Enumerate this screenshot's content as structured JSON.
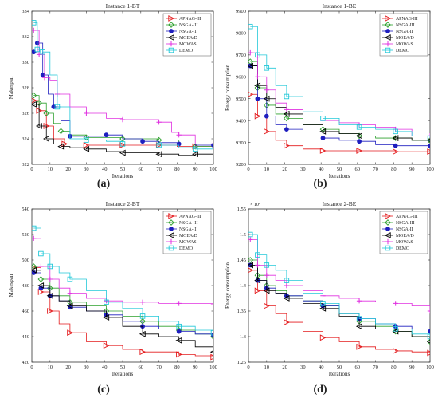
{
  "colors": {
    "APNAG-III": "#e41a1c",
    "NSGA-III": "#2ca02c",
    "NSGA-II": "#1f1fbf",
    "MOEA/D": "#000000",
    "MOWAS": "#e030e0",
    "DEMO": "#22c8d8"
  },
  "chart_data": [
    {
      "type": "line",
      "panel_label": "(a)",
      "title": "Instance 1-BT",
      "xlabel": "Iterations",
      "ylabel": "Makespan",
      "xlim": [
        0,
        100
      ],
      "ylim": [
        322,
        334
      ],
      "xticks": [
        0,
        10,
        20,
        30,
        40,
        50,
        60,
        70,
        80,
        90,
        100
      ],
      "yticks": [
        322,
        324,
        326,
        328,
        330,
        332,
        334
      ],
      "exponent_label": "",
      "legend_position": "top-right",
      "series": [
        {
          "name": "APNAG-III",
          "marker": "triangle-right",
          "x": [
            1,
            4,
            8,
            12,
            18,
            21,
            30,
            40,
            50,
            60,
            70,
            80,
            90,
            100
          ],
          "y": [
            327,
            326.2,
            325,
            324,
            323.6,
            323.6,
            323.5,
            323.5,
            323.5,
            323.5,
            323.5,
            323.4,
            323.4,
            323.4
          ]
        },
        {
          "name": "NSGA-III",
          "marker": "diamond",
          "x": [
            1,
            4,
            8,
            12,
            16,
            21,
            30,
            41,
            50,
            61,
            70,
            81,
            90,
            100
          ],
          "y": [
            327.4,
            326.8,
            326,
            325.2,
            324.6,
            324.3,
            324.1,
            324.1,
            324,
            324,
            323.9,
            323.6,
            323.4,
            323.4
          ]
        },
        {
          "name": "NSGA-II",
          "marker": "filled-circle",
          "x": [
            1,
            3,
            6,
            9,
            12,
            16,
            21,
            30,
            41,
            50,
            61,
            70,
            81,
            90,
            100
          ],
          "y": [
            330.8,
            331.5,
            329,
            327.5,
            326.5,
            325.4,
            324.2,
            324.2,
            324.3,
            324,
            323.8,
            323.7,
            323.6,
            323.5,
            323.5
          ]
        },
        {
          "name": "MOEA/D",
          "marker": "triangle-left",
          "x": [
            1,
            4,
            8,
            12,
            16,
            21,
            30,
            41,
            50,
            61,
            70,
            81,
            90,
            100
          ],
          "y": [
            326.7,
            325,
            324,
            323.6,
            323.4,
            323.3,
            323.2,
            323,
            322.9,
            322.9,
            322.8,
            322.7,
            322.8,
            322.8
          ]
        },
        {
          "name": "MOWAS",
          "marker": "plus",
          "x": [
            1,
            4,
            7,
            10,
            14,
            21,
            30,
            41,
            50,
            61,
            70,
            77,
            81,
            90,
            100
          ],
          "y": [
            332.5,
            330.6,
            328.8,
            328.6,
            327.5,
            326.5,
            326,
            325.6,
            325.5,
            325.5,
            325.3,
            324.5,
            324.3,
            323.6,
            323.6
          ]
        },
        {
          "name": "DEMO",
          "marker": "square",
          "x": [
            1,
            3,
            6,
            10,
            14,
            21,
            30,
            41,
            50,
            61,
            70,
            81,
            90,
            100
          ],
          "y": [
            333.1,
            331,
            330.8,
            329,
            326.5,
            324,
            323.9,
            323.8,
            323.6,
            323.6,
            323.5,
            323.3,
            323.2,
            323.2
          ]
        }
      ]
    },
    {
      "type": "line",
      "panel_label": "(b)",
      "title": "Instance 1-BE",
      "xlabel": "Iterations",
      "ylabel": "Energy consumption",
      "xlim": [
        0,
        100
      ],
      "ylim": [
        9200,
        9900
      ],
      "xticks": [
        0,
        10,
        20,
        30,
        40,
        50,
        60,
        70,
        80,
        90,
        100
      ],
      "yticks": [
        9200,
        9300,
        9400,
        9500,
        9600,
        9700,
        9800,
        9900
      ],
      "exponent_label": "",
      "legend_position": "top-right",
      "series": [
        {
          "name": "APNAG-III",
          "marker": "triangle-right",
          "x": [
            1,
            5,
            10,
            15,
            21,
            30,
            41,
            50,
            61,
            70,
            81,
            90,
            100
          ],
          "y": [
            9520,
            9420,
            9350,
            9310,
            9285,
            9270,
            9262,
            9262,
            9262,
            9262,
            9258,
            9258,
            9258
          ]
        },
        {
          "name": "NSGA-III",
          "marker": "diamond",
          "x": [
            1,
            5,
            10,
            15,
            21,
            30,
            41,
            50,
            61,
            70,
            81,
            90,
            100
          ],
          "y": [
            9670,
            9550,
            9470,
            9430,
            9410,
            9380,
            9360,
            9340,
            9330,
            9320,
            9320,
            9310,
            9310
          ]
        },
        {
          "name": "NSGA-II",
          "marker": "filled-circle",
          "x": [
            1,
            5,
            10,
            15,
            21,
            30,
            41,
            50,
            61,
            70,
            81,
            90,
            100
          ],
          "y": [
            9650,
            9500,
            9420,
            9380,
            9360,
            9330,
            9320,
            9310,
            9305,
            9290,
            9285,
            9285,
            9285
          ]
        },
        {
          "name": "MOEA/D",
          "marker": "triangle-left",
          "x": [
            1,
            5,
            10,
            15,
            21,
            30,
            41,
            50,
            61,
            70,
            81,
            90,
            100
          ],
          "y": [
            9650,
            9560,
            9500,
            9460,
            9430,
            9380,
            9350,
            9340,
            9330,
            9330,
            9320,
            9310,
            9310
          ]
        },
        {
          "name": "MOWAS",
          "marker": "plus",
          "x": [
            1,
            5,
            10,
            15,
            21,
            30,
            41,
            50,
            61,
            70,
            81,
            90,
            100
          ],
          "y": [
            9710,
            9600,
            9540,
            9480,
            9450,
            9420,
            9400,
            9390,
            9380,
            9370,
            9360,
            9330,
            9330
          ]
        },
        {
          "name": "DEMO",
          "marker": "square",
          "x": [
            1,
            5,
            10,
            15,
            21,
            30,
            41,
            50,
            61,
            70,
            81,
            90,
            100
          ],
          "y": [
            9830,
            9700,
            9640,
            9560,
            9510,
            9440,
            9410,
            9380,
            9370,
            9360,
            9350,
            9330,
            9320
          ]
        }
      ]
    },
    {
      "type": "line",
      "panel_label": "(c)",
      "title": "Instance 2-BT",
      "xlabel": "Iterations",
      "ylabel": "Makespan",
      "xlim": [
        0,
        100
      ],
      "ylim": [
        420,
        540
      ],
      "xticks": [
        0,
        10,
        20,
        30,
        40,
        50,
        60,
        70,
        80,
        90,
        100
      ],
      "yticks": [
        420,
        440,
        460,
        480,
        500,
        520,
        540
      ],
      "exponent_label": "",
      "legend_position": "top-right",
      "series": [
        {
          "name": "APNAG-III",
          "marker": "triangle-right",
          "x": [
            1,
            5,
            10,
            15,
            21,
            30,
            41,
            50,
            61,
            70,
            81,
            90,
            100
          ],
          "y": [
            494,
            475,
            460,
            450,
            443,
            436,
            433,
            430,
            428,
            428,
            426,
            425,
            424
          ]
        },
        {
          "name": "NSGA-III",
          "marker": "diamond",
          "x": [
            1,
            5,
            10,
            15,
            21,
            30,
            41,
            50,
            61,
            70,
            81,
            90,
            100
          ],
          "y": [
            495,
            485,
            478,
            472,
            467,
            464,
            460,
            456,
            452,
            448,
            445,
            442,
            440
          ]
        },
        {
          "name": "NSGA-II",
          "marker": "filled-circle",
          "x": [
            1,
            5,
            10,
            15,
            21,
            30,
            41,
            50,
            61,
            70,
            81,
            90,
            100
          ],
          "y": [
            490,
            478,
            472,
            468,
            463,
            460,
            457,
            452,
            448,
            446,
            444,
            442,
            441
          ]
        },
        {
          "name": "MOEA/D",
          "marker": "triangle-left",
          "x": [
            1,
            5,
            10,
            15,
            21,
            30,
            41,
            50,
            61,
            70,
            81,
            90,
            100
          ],
          "y": [
            492,
            480,
            472,
            468,
            464,
            460,
            455,
            448,
            442,
            440,
            437,
            432,
            428
          ]
        },
        {
          "name": "MOWAS",
          "marker": "plus",
          "x": [
            1,
            5,
            10,
            15,
            21,
            30,
            41,
            50,
            61,
            70,
            81,
            90,
            100
          ],
          "y": [
            517,
            495,
            485,
            478,
            474,
            470,
            468,
            467,
            467,
            466,
            466,
            466,
            465
          ]
        },
        {
          "name": "DEMO",
          "marker": "square",
          "x": [
            1,
            5,
            10,
            15,
            21,
            30,
            41,
            50,
            61,
            70,
            81,
            90,
            100
          ],
          "y": [
            525,
            505,
            495,
            490,
            485,
            476,
            467,
            462,
            456,
            452,
            448,
            445,
            443
          ]
        }
      ]
    },
    {
      "type": "line",
      "panel_label": "(d)",
      "title": "Instance 2-BE",
      "xlabel": "Iterations",
      "ylabel": "Energy consumption",
      "xlim": [
        0,
        100
      ],
      "ylim": [
        1.25,
        1.55
      ],
      "xticks": [
        0,
        10,
        20,
        30,
        40,
        50,
        60,
        70,
        80,
        90,
        100
      ],
      "yticks": [
        1.25,
        1.3,
        1.35,
        1.4,
        1.45,
        1.5,
        1.55
      ],
      "ytick_labels": [
        "1.25",
        "1.3",
        "1.35",
        "1.4",
        "1.45",
        "1.5",
        "1.55"
      ],
      "exponent_label": "× 10⁴",
      "legend_position": "top-right",
      "series": [
        {
          "name": "APNAG-III",
          "marker": "triangle-right",
          "x": [
            1,
            5,
            10,
            15,
            21,
            30,
            41,
            50,
            61,
            70,
            81,
            90,
            100
          ],
          "y": [
            1.43,
            1.39,
            1.36,
            1.345,
            1.328,
            1.31,
            1.298,
            1.29,
            1.28,
            1.275,
            1.272,
            1.27,
            1.268
          ]
        },
        {
          "name": "NSGA-III",
          "marker": "diamond",
          "x": [
            1,
            5,
            10,
            15,
            21,
            30,
            41,
            50,
            61,
            70,
            81,
            90,
            100
          ],
          "y": [
            1.45,
            1.42,
            1.4,
            1.39,
            1.38,
            1.37,
            1.36,
            1.345,
            1.33,
            1.32,
            1.31,
            1.3,
            1.29
          ]
        },
        {
          "name": "NSGA-II",
          "marker": "filled-circle",
          "x": [
            1,
            5,
            10,
            15,
            21,
            30,
            41,
            50,
            61,
            70,
            81,
            90,
            100
          ],
          "y": [
            1.44,
            1.41,
            1.395,
            1.385,
            1.38,
            1.37,
            1.36,
            1.345,
            1.335,
            1.325,
            1.32,
            1.315,
            1.31
          ]
        },
        {
          "name": "MOEA/D",
          "marker": "triangle-left",
          "x": [
            1,
            5,
            10,
            15,
            21,
            30,
            41,
            50,
            61,
            70,
            81,
            90,
            100
          ],
          "y": [
            1.44,
            1.41,
            1.39,
            1.385,
            1.375,
            1.365,
            1.355,
            1.34,
            1.32,
            1.315,
            1.31,
            1.3,
            1.29
          ]
        },
        {
          "name": "MOWAS",
          "marker": "plus",
          "x": [
            1,
            5,
            10,
            15,
            21,
            30,
            41,
            50,
            61,
            70,
            81,
            90,
            100
          ],
          "y": [
            1.49,
            1.44,
            1.42,
            1.41,
            1.4,
            1.39,
            1.38,
            1.375,
            1.37,
            1.368,
            1.365,
            1.36,
            1.35
          ]
        },
        {
          "name": "DEMO",
          "marker": "square",
          "x": [
            1,
            5,
            10,
            15,
            21,
            30,
            41,
            50,
            61,
            70,
            81,
            90,
            100
          ],
          "y": [
            1.5,
            1.46,
            1.44,
            1.43,
            1.41,
            1.385,
            1.365,
            1.345,
            1.335,
            1.325,
            1.315,
            1.305,
            1.3
          ]
        }
      ]
    }
  ]
}
